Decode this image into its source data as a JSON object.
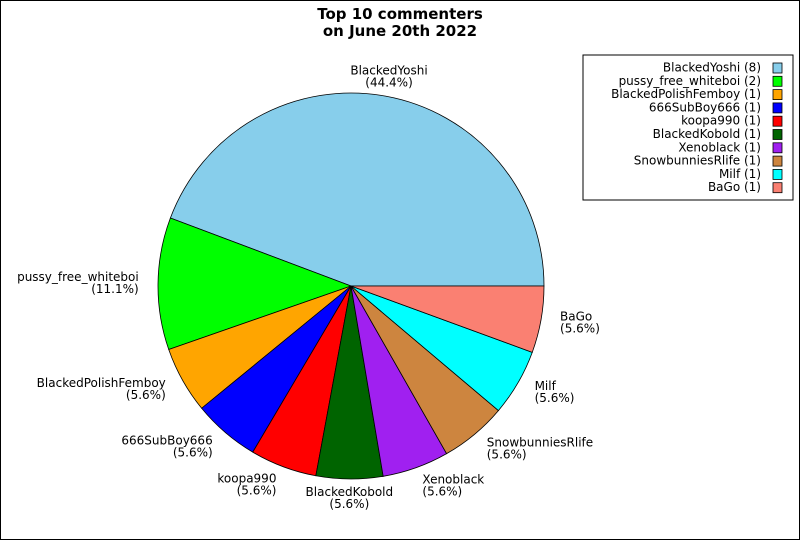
{
  "chart_data": {
    "type": "pie",
    "title": "Top 10 commenters\non June 20th 2022",
    "categories": [
      "BlackedYoshi",
      "pussy_free_whiteboi",
      "BlackedPolishFemboy",
      "666SubBoy666",
      "koopa990",
      "BlackedKobold",
      "Xenoblack",
      "SnowbunniesRlife",
      "Milf",
      "BaGo"
    ],
    "values": [
      44.4,
      11.1,
      5.6,
      5.6,
      5.6,
      5.6,
      5.6,
      5.6,
      5.6,
      5.6
    ],
    "value_labels": [
      "(44.4%)",
      "(11.1%)",
      "(5.6%)",
      "(5.6%)",
      "(5.6%)",
      "(5.6%)",
      "(5.6%)",
      "(5.6%)",
      "(5.6%)",
      "(5.6%)"
    ],
    "legend_labels": [
      "BlackedYoshi (8)",
      "pussy_free_whiteboi (2)",
      "BlackedPolishFemboy (1)",
      "666SubBoy666 (1)",
      "koopa990 (1)",
      "BlackedKobold (1)",
      "Xenoblack (1)",
      "SnowbunniesRlife (1)",
      "Milf (1)",
      "BaGo (1)"
    ],
    "colors": [
      "#87ceeb",
      "#00ff00",
      "#ffa500",
      "#0000ff",
      "#ff0000",
      "#006400",
      "#a020f0",
      "#cd853f",
      "#00ffff",
      "#fa8072"
    ],
    "legend": "upper right"
  }
}
